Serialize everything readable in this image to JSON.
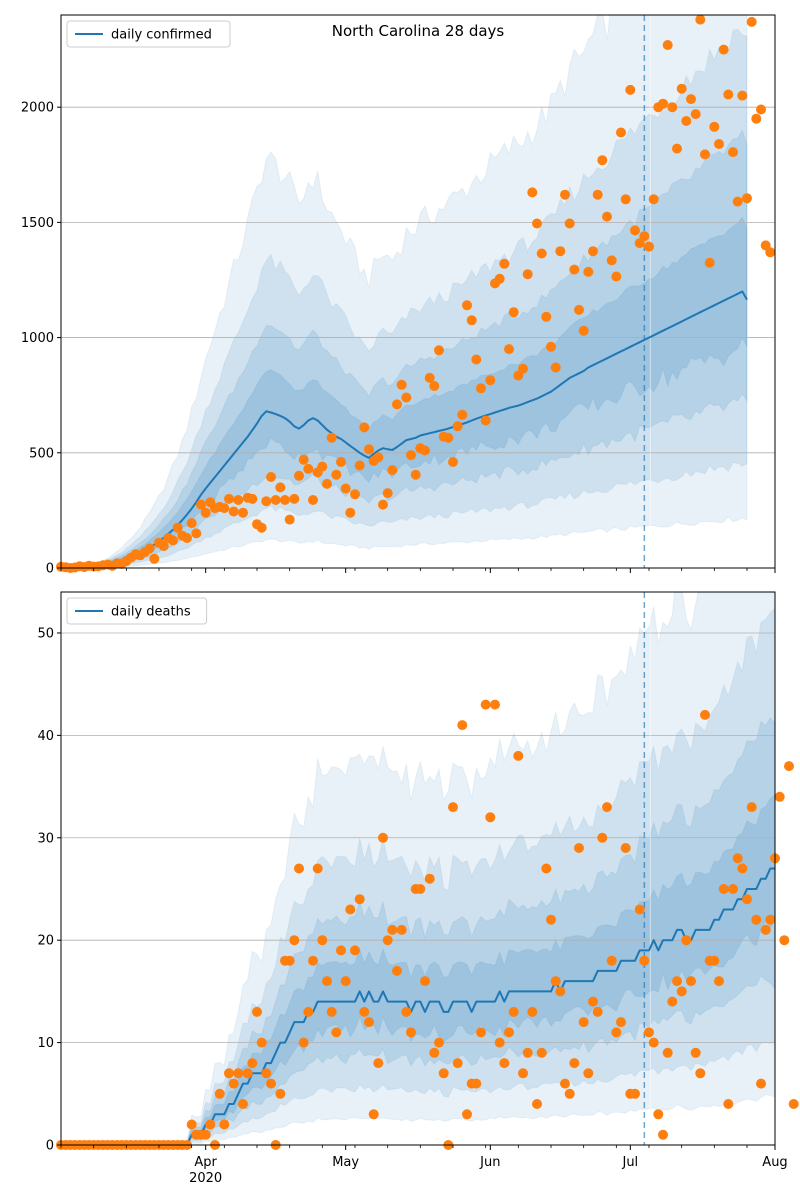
{
  "chart_data": [
    {
      "type": "line",
      "title": "North Carolina 28 days",
      "legend": {
        "entries": [
          "daily confirmed"
        ],
        "placement": "upper-left"
      },
      "ylim": [
        0,
        2400
      ],
      "yticks": [
        0,
        500,
        1000,
        1500,
        2000
      ],
      "xlim": [
        "2020-03-01",
        "2020-08-01"
      ],
      "x_major_ticks": [
        {
          "date": "2020-04-01",
          "label": "Apr",
          "sublabel": "2020"
        },
        {
          "date": "2020-05-01",
          "label": "May",
          "sublabel": ""
        },
        {
          "date": "2020-06-01",
          "label": "Jun",
          "sublabel": ""
        },
        {
          "date": "2020-07-01",
          "label": "Jul",
          "sublabel": ""
        },
        {
          "date": "2020-08-01",
          "label": "Aug",
          "sublabel": ""
        }
      ],
      "forecast_start": "2020-07-04",
      "grid": "horizontal",
      "series_start": "2020-03-01",
      "series_interval_days": 1,
      "model": [
        0,
        0,
        0,
        0,
        0,
        0,
        2,
        4,
        6,
        9,
        13,
        18,
        24,
        30,
        38,
        46,
        55,
        65,
        76,
        88,
        101,
        115,
        131,
        148,
        166,
        186,
        208,
        232,
        258,
        286,
        318,
        345,
        370,
        395,
        420,
        445,
        470,
        495,
        520,
        545,
        570,
        598,
        627,
        660,
        680,
        675,
        668,
        660,
        650,
        635,
        615,
        605,
        620,
        640,
        650,
        640,
        620,
        600,
        585,
        570,
        560,
        545,
        530,
        515,
        500,
        488,
        478,
        495,
        510,
        520,
        515,
        512,
        525,
        540,
        555,
        560,
        565,
        575,
        580,
        585,
        590,
        595,
        600,
        605,
        612,
        618,
        625,
        632,
        640,
        648,
        655,
        662,
        668,
        675,
        682,
        688,
        695,
        700,
        705,
        712,
        720,
        728,
        735,
        745,
        755,
        765,
        780,
        795,
        810,
        825,
        835,
        845,
        855,
        870,
        880,
        890,
        900,
        910,
        920,
        930,
        940,
        950,
        960,
        970,
        980,
        990,
        1000,
        1010,
        1020,
        1030,
        1040,
        1050,
        1060,
        1070,
        1080,
        1090,
        1100,
        1110,
        1120,
        1130,
        1140,
        1150,
        1160,
        1170,
        1180,
        1190,
        1200,
        1165
      ],
      "observed": [
        5,
        3,
        0,
        2,
        8,
        4,
        10,
        6,
        7,
        12,
        15,
        9,
        20,
        18,
        30,
        45,
        60,
        55,
        70,
        85,
        40,
        110,
        95,
        130,
        120,
        175,
        140,
        130,
        195,
        150,
        275,
        240,
        285,
        260,
        265,
        260,
        300,
        245,
        295,
        240,
        305,
        300,
        190,
        175,
        290,
        395,
        295,
        350,
        295,
        210,
        300,
        400,
        470,
        430,
        295,
        415,
        440,
        365,
        565,
        405,
        460,
        345,
        240,
        320,
        445,
        610,
        515,
        465,
        480,
        275,
        325,
        425,
        710,
        795,
        740,
        490,
        405,
        520,
        510,
        825,
        790,
        945,
        570,
        565,
        460,
        615,
        665,
        1140,
        1075,
        905,
        780,
        640,
        815,
        1235,
        1255,
        1320,
        950,
        1110,
        835,
        865,
        1275,
        1630,
        1495,
        1365,
        1090,
        960,
        870,
        1375,
        1620,
        1495,
        1295,
        1120,
        1030,
        1285,
        1375,
        1620,
        1770,
        1525,
        1335,
        1265,
        1890,
        1600,
        2075,
        1465,
        1410,
        1440,
        1395,
        1600,
        2000,
        2015,
        2270,
        2000,
        1820,
        2080,
        1940,
        2035,
        1970,
        2380,
        1795,
        1325,
        1915,
        1840,
        2250,
        2055,
        1805,
        1590,
        2050,
        1605,
        2370,
        1950,
        1990,
        1400,
        1370
      ]
    },
    {
      "type": "line",
      "legend": {
        "entries": [
          "daily deaths"
        ],
        "placement": "upper-left"
      },
      "ylim": [
        0,
        54
      ],
      "yticks": [
        0,
        10,
        20,
        30,
        40,
        50
      ],
      "xlim": [
        "2020-03-01",
        "2020-08-01"
      ],
      "x_major_ticks": [
        {
          "date": "2020-04-01",
          "label": "Apr",
          "sublabel": "2020"
        },
        {
          "date": "2020-05-01",
          "label": "May",
          "sublabel": ""
        },
        {
          "date": "2020-06-01",
          "label": "Jun",
          "sublabel": ""
        },
        {
          "date": "2020-07-01",
          "label": "Jul",
          "sublabel": ""
        },
        {
          "date": "2020-08-01",
          "label": "Aug",
          "sublabel": ""
        }
      ],
      "forecast_start": "2020-07-04",
      "grid": "horizontal",
      "series_start": "2020-03-01",
      "series_interval_days": 1,
      "model": [
        0,
        0,
        0,
        0,
        0,
        0,
        0,
        0,
        0,
        0,
        0,
        0,
        0,
        0,
        0,
        0,
        0,
        0,
        0,
        0,
        0,
        0,
        0,
        0,
        0,
        0,
        0,
        0,
        1,
        1,
        1,
        2,
        2,
        3,
        3,
        3,
        4,
        4,
        5,
        6,
        6,
        7,
        7,
        7,
        8,
        8,
        9,
        10,
        10,
        11,
        12,
        12,
        12,
        13,
        13,
        14,
        14,
        14,
        14,
        14,
        14,
        14,
        14,
        14,
        15,
        14,
        15,
        14,
        14,
        15,
        14,
        14,
        14,
        14,
        14,
        13,
        14,
        14,
        13,
        14,
        14,
        14,
        13,
        13,
        14,
        14,
        14,
        14,
        13,
        14,
        14,
        14,
        14,
        14,
        15,
        14,
        15,
        15,
        15,
        15,
        15,
        15,
        15,
        15,
        15,
        15,
        16,
        15,
        16,
        16,
        16,
        16,
        16,
        16,
        16,
        17,
        17,
        17,
        17,
        17,
        18,
        18,
        18,
        18,
        19,
        19,
        19,
        20,
        19,
        20,
        20,
        20,
        21,
        21,
        20,
        20,
        21,
        21,
        21,
        21,
        22,
        22,
        23,
        23,
        23,
        24,
        24,
        25,
        25,
        25,
        26,
        26,
        27,
        27,
        27,
        27,
        27
      ],
      "observed": [
        0,
        0,
        0,
        0,
        0,
        0,
        0,
        0,
        0,
        0,
        0,
        0,
        0,
        0,
        0,
        0,
        0,
        0,
        0,
        0,
        0,
        0,
        0,
        0,
        0,
        0,
        0,
        0,
        2,
        1,
        1,
        1,
        2,
        0,
        5,
        2,
        7,
        6,
        7,
        4,
        7,
        8,
        13,
        10,
        7,
        6,
        0,
        5,
        18,
        18,
        20,
        27,
        10,
        13,
        18,
        27,
        20,
        16,
        13,
        11,
        19,
        16,
        23,
        19,
        24,
        13,
        12,
        3,
        8,
        30,
        20,
        21,
        17,
        21,
        13,
        11,
        25,
        25,
        16,
        26,
        9,
        10,
        7,
        0,
        33,
        8,
        41,
        3,
        6,
        6,
        11,
        43,
        32,
        43,
        10,
        8,
        11,
        13,
        38,
        7,
        9,
        13,
        4,
        9,
        27,
        22,
        16,
        15,
        6,
        5,
        8,
        29,
        12,
        7,
        14,
        13,
        30,
        33,
        18,
        11,
        12,
        29,
        5,
        5,
        23,
        18,
        11,
        10,
        3,
        1,
        9,
        14,
        16,
        15,
        20,
        16,
        9,
        7,
        42,
        18,
        18,
        16,
        25,
        4,
        25,
        28,
        27,
        24,
        33,
        22,
        6,
        21,
        22,
        28,
        34,
        20,
        37,
        4
      ]
    }
  ]
}
